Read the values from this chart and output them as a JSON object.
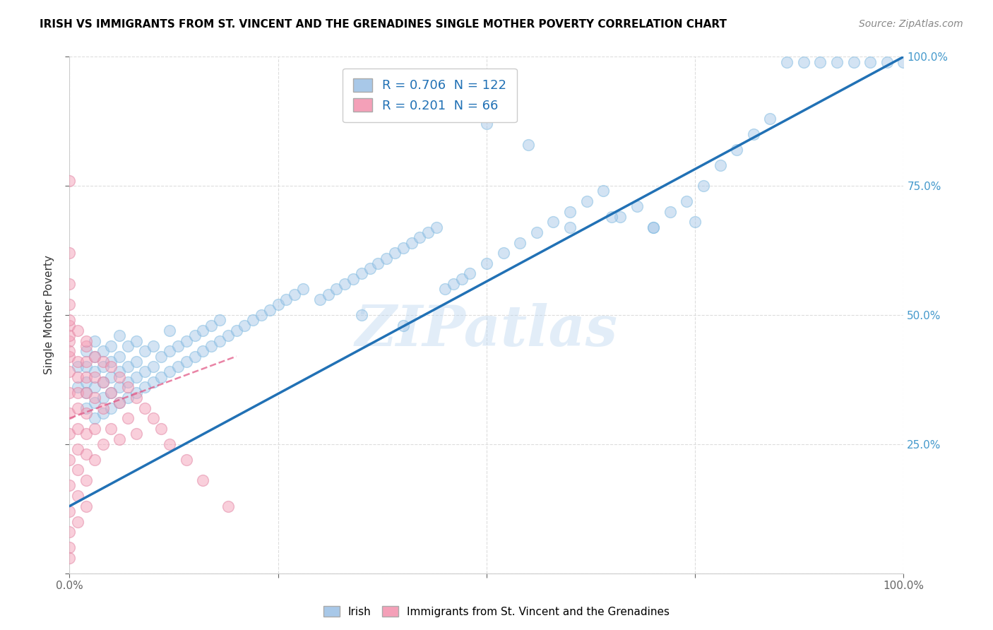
{
  "title": "IRISH VS IMMIGRANTS FROM ST. VINCENT AND THE GRENADINES SINGLE MOTHER POVERTY CORRELATION CHART",
  "source": "Source: ZipAtlas.com",
  "ylabel": "Single Mother Poverty",
  "xlim": [
    0,
    1
  ],
  "ylim": [
    0,
    1
  ],
  "blue_R": 0.706,
  "blue_N": 122,
  "pink_R": 0.201,
  "pink_N": 66,
  "blue_color": "#a8c8e8",
  "pink_color": "#f4a0b8",
  "blue_line_color": "#2171b5",
  "pink_line_color": "#e05080",
  "watermark": "ZIPatlas",
  "legend_blue_label": "Irish",
  "legend_pink_label": "Immigrants from St. Vincent and the Grenadines",
  "blue_line_x0": 0.0,
  "blue_line_y0": 0.13,
  "blue_line_x1": 1.0,
  "blue_line_y1": 1.0,
  "pink_line_x0": 0.0,
  "pink_line_y0": 0.3,
  "pink_line_x1": 0.2,
  "pink_line_y1": 0.42,
  "blue_scatter_x": [
    0.01,
    0.01,
    0.02,
    0.02,
    0.02,
    0.02,
    0.02,
    0.03,
    0.03,
    0.03,
    0.03,
    0.03,
    0.03,
    0.04,
    0.04,
    0.04,
    0.04,
    0.04,
    0.05,
    0.05,
    0.05,
    0.05,
    0.05,
    0.06,
    0.06,
    0.06,
    0.06,
    0.06,
    0.07,
    0.07,
    0.07,
    0.07,
    0.08,
    0.08,
    0.08,
    0.08,
    0.09,
    0.09,
    0.09,
    0.1,
    0.1,
    0.1,
    0.11,
    0.11,
    0.12,
    0.12,
    0.12,
    0.13,
    0.13,
    0.14,
    0.14,
    0.15,
    0.15,
    0.16,
    0.16,
    0.17,
    0.17,
    0.18,
    0.18,
    0.19,
    0.2,
    0.21,
    0.22,
    0.23,
    0.24,
    0.25,
    0.26,
    0.27,
    0.28,
    0.3,
    0.31,
    0.32,
    0.33,
    0.34,
    0.35,
    0.36,
    0.37,
    0.38,
    0.39,
    0.4,
    0.41,
    0.42,
    0.43,
    0.44,
    0.45,
    0.46,
    0.47,
    0.48,
    0.5,
    0.52,
    0.54,
    0.56,
    0.58,
    0.6,
    0.62,
    0.64,
    0.66,
    0.68,
    0.7,
    0.72,
    0.74,
    0.76,
    0.78,
    0.8,
    0.82,
    0.84,
    0.86,
    0.88,
    0.9,
    0.92,
    0.94,
    0.96,
    0.98,
    1.0,
    0.5,
    0.55,
    0.6,
    0.65,
    0.7,
    0.75,
    0.35,
    0.4
  ],
  "blue_scatter_y": [
    0.36,
    0.4,
    0.32,
    0.35,
    0.37,
    0.4,
    0.43,
    0.3,
    0.33,
    0.36,
    0.39,
    0.42,
    0.45,
    0.31,
    0.34,
    0.37,
    0.4,
    0.43,
    0.32,
    0.35,
    0.38,
    0.41,
    0.44,
    0.33,
    0.36,
    0.39,
    0.42,
    0.46,
    0.34,
    0.37,
    0.4,
    0.44,
    0.35,
    0.38,
    0.41,
    0.45,
    0.36,
    0.39,
    0.43,
    0.37,
    0.4,
    0.44,
    0.38,
    0.42,
    0.39,
    0.43,
    0.47,
    0.4,
    0.44,
    0.41,
    0.45,
    0.42,
    0.46,
    0.43,
    0.47,
    0.44,
    0.48,
    0.45,
    0.49,
    0.46,
    0.47,
    0.48,
    0.49,
    0.5,
    0.51,
    0.52,
    0.53,
    0.54,
    0.55,
    0.53,
    0.54,
    0.55,
    0.56,
    0.57,
    0.58,
    0.59,
    0.6,
    0.61,
    0.62,
    0.63,
    0.64,
    0.65,
    0.66,
    0.67,
    0.55,
    0.56,
    0.57,
    0.58,
    0.6,
    0.62,
    0.64,
    0.66,
    0.68,
    0.7,
    0.72,
    0.74,
    0.69,
    0.71,
    0.67,
    0.7,
    0.72,
    0.75,
    0.79,
    0.82,
    0.85,
    0.88,
    0.99,
    0.99,
    0.99,
    0.99,
    0.99,
    0.99,
    0.99,
    0.99,
    0.87,
    0.83,
    0.67,
    0.69,
    0.67,
    0.68,
    0.5,
    0.48
  ],
  "pink_scatter_x": [
    0.0,
    0.0,
    0.0,
    0.0,
    0.0,
    0.0,
    0.0,
    0.0,
    0.0,
    0.0,
    0.0,
    0.0,
    0.0,
    0.0,
    0.0,
    0.0,
    0.0,
    0.0,
    0.0,
    0.0,
    0.01,
    0.01,
    0.01,
    0.01,
    0.01,
    0.01,
    0.01,
    0.01,
    0.01,
    0.01,
    0.02,
    0.02,
    0.02,
    0.02,
    0.02,
    0.02,
    0.02,
    0.02,
    0.02,
    0.02,
    0.03,
    0.03,
    0.03,
    0.03,
    0.03,
    0.04,
    0.04,
    0.04,
    0.04,
    0.05,
    0.05,
    0.05,
    0.06,
    0.06,
    0.06,
    0.07,
    0.07,
    0.08,
    0.08,
    0.09,
    0.1,
    0.11,
    0.12,
    0.14,
    0.16,
    0.19
  ],
  "pink_scatter_y": [
    0.76,
    0.62,
    0.56,
    0.52,
    0.48,
    0.45,
    0.42,
    0.39,
    0.35,
    0.31,
    0.27,
    0.22,
    0.17,
    0.12,
    0.08,
    0.05,
    0.03,
    0.49,
    0.46,
    0.43,
    0.41,
    0.38,
    0.35,
    0.32,
    0.28,
    0.24,
    0.2,
    0.15,
    0.1,
    0.47,
    0.44,
    0.41,
    0.38,
    0.35,
    0.31,
    0.27,
    0.23,
    0.18,
    0.13,
    0.45,
    0.42,
    0.38,
    0.34,
    0.28,
    0.22,
    0.41,
    0.37,
    0.32,
    0.25,
    0.4,
    0.35,
    0.28,
    0.38,
    0.33,
    0.26,
    0.36,
    0.3,
    0.34,
    0.27,
    0.32,
    0.3,
    0.28,
    0.25,
    0.22,
    0.18,
    0.13
  ]
}
